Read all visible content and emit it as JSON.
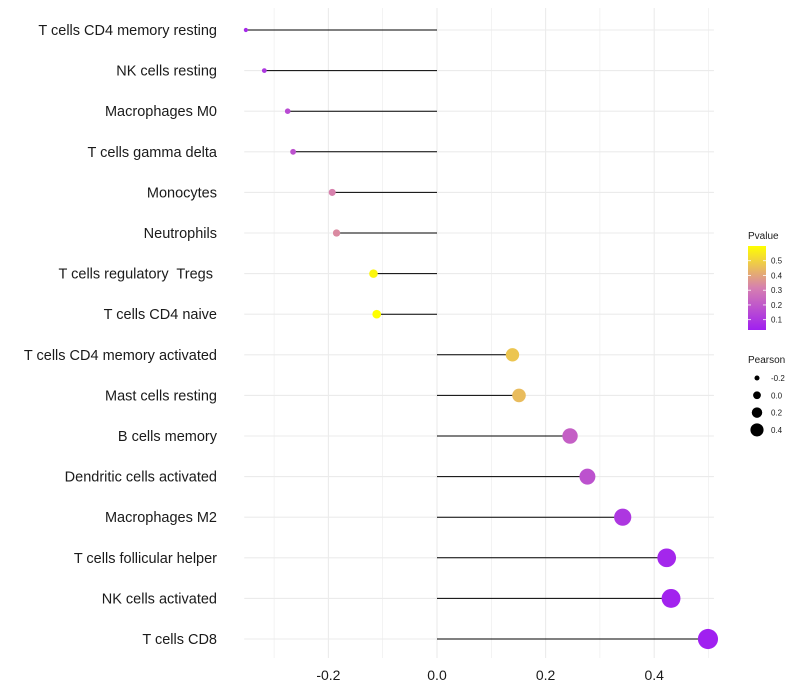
{
  "chart_data": {
    "type": "lollipop",
    "title": "",
    "xlabel": "",
    "ylabel": "",
    "xlim": [
      -0.355,
      0.51
    ],
    "x_ticks": [
      -0.2,
      0.0,
      0.2,
      0.4
    ],
    "x_tick_labels": [
      "-0.2",
      "0.0",
      "0.2",
      "0.4"
    ],
    "grid": true,
    "points": [
      {
        "label": "T cells CD4 memory resting",
        "pearson": -0.352,
        "pvalue": 0.06
      },
      {
        "label": "NK cells resting",
        "pearson": -0.318,
        "pvalue": 0.1
      },
      {
        "label": "Macrophages M0",
        "pearson": -0.275,
        "pvalue": 0.16
      },
      {
        "label": "T cells gamma delta",
        "pearson": -0.265,
        "pvalue": 0.18
      },
      {
        "label": "Monocytes",
        "pearson": -0.193,
        "pvalue": 0.32
      },
      {
        "label": "Neutrophils",
        "pearson": -0.185,
        "pvalue": 0.34
      },
      {
        "label": "T cells regulatory  Tregs ",
        "pearson": -0.117,
        "pvalue": 0.58
      },
      {
        "label": "T cells CD4 naive",
        "pearson": -0.111,
        "pvalue": 0.6
      },
      {
        "label": "T cells CD4 memory activated",
        "pearson": 0.139,
        "pvalue": 0.47
      },
      {
        "label": "Mast cells resting",
        "pearson": 0.151,
        "pvalue": 0.45
      },
      {
        "label": "B cells memory",
        "pearson": 0.245,
        "pvalue": 0.22
      },
      {
        "label": "Dendritic cells activated",
        "pearson": 0.277,
        "pvalue": 0.18
      },
      {
        "label": "Macrophages M2",
        "pearson": 0.342,
        "pvalue": 0.1
      },
      {
        "label": "T cells follicular helper",
        "pearson": 0.423,
        "pvalue": 0.05
      },
      {
        "label": "NK cells activated",
        "pearson": 0.431,
        "pvalue": 0.04
      },
      {
        "label": "T cells CD8",
        "pearson": 0.499,
        "pvalue": 0.02
      }
    ],
    "legend_pvalue": {
      "title": "Pvalue",
      "range": [
        0.03,
        0.6
      ],
      "ticks": [
        0.1,
        0.2,
        0.3,
        0.4,
        0.5
      ],
      "tick_labels": [
        "0.1",
        "0.2",
        "0.3",
        "0.4",
        "0.5"
      ],
      "color_low": "#a020f0",
      "color_mid": "#d67fb0",
      "color_high": "#ffff00"
    },
    "legend_pearson": {
      "title": "Pearson",
      "values": [
        -0.2,
        0.0,
        0.2,
        0.4
      ],
      "labels": [
        "-0.2",
        "0.0",
        "0.2",
        "0.4"
      ]
    },
    "stem_color": "#000000",
    "grid_color": "#ebebeb"
  }
}
